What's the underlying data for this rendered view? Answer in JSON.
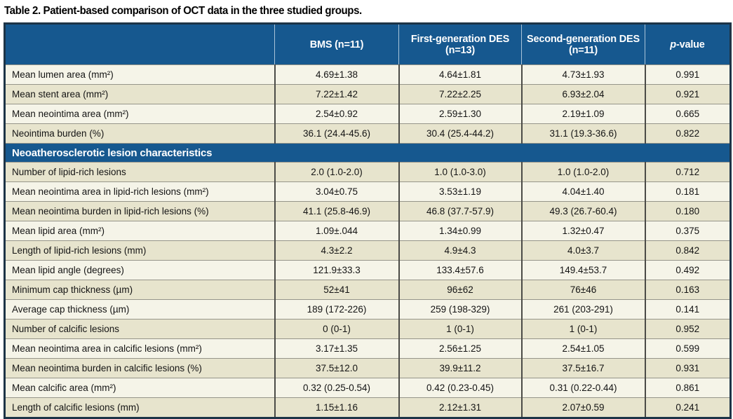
{
  "title": "Table 2. Patient-based comparison of OCT data in the three studied groups.",
  "header": {
    "label_col": "",
    "bms": "BMS (n=11)",
    "des1": "First-generation DES (n=13)",
    "des2": "Second-generation DES (n=11)",
    "pvalue_italic": "p",
    "pvalue_rest": "-value"
  },
  "section_header": "Neoatherosclerotic lesion characteristics",
  "rows": [
    {
      "label": "Mean lumen area (mm²)",
      "bms": "4.69±1.38",
      "des1": "4.64±1.81",
      "des2": "4.73±1.93",
      "p": "0.991"
    },
    {
      "label": "Mean stent area (mm²)",
      "bms": "7.22±1.42",
      "des1": "7.22±2.25",
      "des2": "6.93±2.04",
      "p": "0.921"
    },
    {
      "label": "Mean neointima area (mm²)",
      "bms": "2.54±0.92",
      "des1": "2.59±1.30",
      "des2": "2.19±1.09",
      "p": "0.665"
    },
    {
      "label": "Neointima burden (%)",
      "bms": "36.1 (24.4-45.6)",
      "des1": "30.4 (25.4-44.2)",
      "des2": "31.1 (19.3-36.6)",
      "p": "0.822"
    },
    {
      "label": "Number of lipid-rich lesions",
      "bms": "2.0 (1.0-2.0)",
      "des1": "1.0 (1.0-3.0)",
      "des2": "1.0 (1.0-2.0)",
      "p": "0.712"
    },
    {
      "label": "Mean neointima area in lipid-rich lesions (mm²)",
      "bms": "3.04±0.75",
      "des1": "3.53±1.19",
      "des2": "4.04±1.40",
      "p": "0.181"
    },
    {
      "label": "Mean neointima burden in lipid-rich lesions (%)",
      "bms": "41.1 (25.8-46.9)",
      "des1": "46.8 (37.7-57.9)",
      "des2": "49.3 (26.7-60.4)",
      "p": "0.180"
    },
    {
      "label": "Mean lipid area (mm²)",
      "bms": "1.09±.044",
      "des1": "1.34±0.99",
      "des2": "1.32±0.47",
      "p": "0.375"
    },
    {
      "label": "Length of lipid-rich lesions (mm)",
      "bms": "4.3±2.2",
      "des1": "4.9±4.3",
      "des2": "4.0±3.7",
      "p": "0.842"
    },
    {
      "label": "Mean lipid angle (degrees)",
      "bms": "121.9±33.3",
      "des1": "133.4±57.6",
      "des2": "149.4±53.7",
      "p": "0.492"
    },
    {
      "label": "Minimum cap thickness (µm)",
      "bms": "52±41",
      "des1": "96±62",
      "des2": "76±46",
      "p": "0.163"
    },
    {
      "label": "Average cap thickness (µm)",
      "bms": "189 (172-226)",
      "des1": "259 (198-329)",
      "des2": "261 (203-291)",
      "p": "0.141"
    },
    {
      "label": "Number of calcific lesions",
      "bms": "0 (0-1)",
      "des1": "1 (0-1)",
      "des2": "1 (0-1)",
      "p": "0.952"
    },
    {
      "label": "Mean neointima area in calcific lesions (mm²)",
      "bms": "3.17±1.35",
      "des1": "2.56±1.25",
      "des2": "2.54±1.05",
      "p": "0.599"
    },
    {
      "label": "Mean neointima burden in calcific lesions (%)",
      "bms": "37.5±12.0",
      "des1": "39.9±11.2",
      "des2": "37.5±16.7",
      "p": "0.931"
    },
    {
      "label": "Mean calcific area (mm²)",
      "bms": "0.32 (0.25-0.54)",
      "des1": "0.42 (0.23-0.45)",
      "des2": "0.31 (0.22-0.44)",
      "p": "0.861"
    },
    {
      "label": "Length of calcific lesions (mm)",
      "bms": "1.15±1.16",
      "des1": "2.12±1.31",
      "des2": "2.07±0.59",
      "p": "0.241"
    }
  ],
  "colors": {
    "header_blue": "#16588f",
    "row_light": "#f5f4e8",
    "row_dark": "#e7e4cd",
    "outer_border": "#1d3447"
  }
}
